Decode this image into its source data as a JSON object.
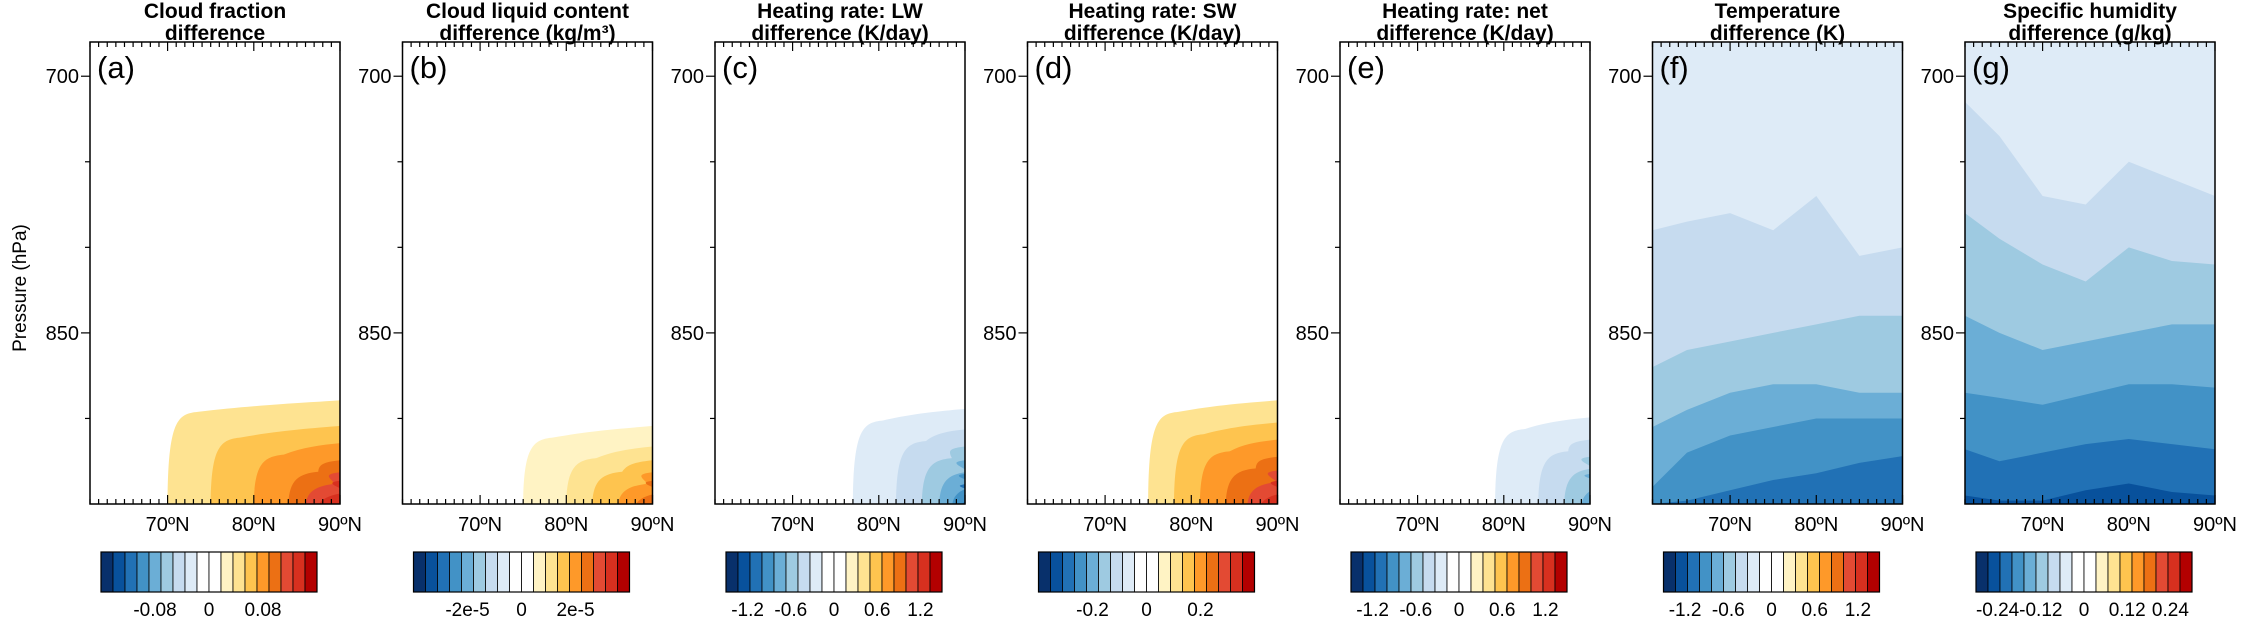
{
  "figure": {
    "ylabel": "Pressure (hPa)",
    "level_scale": [
      "#08306b",
      "#08519c",
      "#2171b5",
      "#4292c6",
      "#6baed6",
      "#9ecae1",
      "#c6dbef",
      "#deebf7",
      "#ffffff",
      "#ffffff",
      "#fff3c4",
      "#fee391",
      "#fec44f",
      "#fe9929",
      "#ec7014",
      "#e34a33",
      "#d7301f",
      "#b30000"
    ]
  },
  "chart_data": [
    {
      "type": "filled-contour",
      "panel": "(a)",
      "title_line1": "Cloud fraction",
      "title_line2": "difference",
      "x_ticks": [
        "70ºN",
        "80ºN",
        "90ºN"
      ],
      "x_range_deg_N": [
        61,
        90
      ],
      "y_ticks": [
        "700",
        "850"
      ],
      "y_range_hPa": [
        680,
        950
      ],
      "colorbar_labels": [
        "-0.08",
        "0",
        "0.08"
      ],
      "colorbar_range": [
        -0.16,
        0.16
      ],
      "shading": "positive anomaly confined below ~890 hPa, strongest near 90ºN surface",
      "anomaly_bands": [
        {
          "level": 11,
          "lat_start": 70,
          "p_top": 895
        },
        {
          "level": 12,
          "lat_start": 75,
          "p_top": 910
        },
        {
          "level": 13,
          "lat_start": 80,
          "p_top": 920
        },
        {
          "level": 14,
          "lat_start": 84,
          "p_top": 930
        },
        {
          "level": 15,
          "lat_start": 86,
          "p_top": 937
        },
        {
          "level": 16,
          "lat_start": 87.5,
          "p_top": 942
        }
      ]
    },
    {
      "type": "filled-contour",
      "panel": "(b)",
      "title_line1": "Cloud liquid content",
      "title_line2": "difference (kg/m³)",
      "x_ticks": [
        "70ºN",
        "80ºN",
        "90ºN"
      ],
      "x_range_deg_N": [
        61,
        90
      ],
      "y_ticks": [
        "700",
        "850"
      ],
      "y_range_hPa": [
        680,
        950
      ],
      "colorbar_labels": [
        "-2e-5",
        "0",
        "2e-5"
      ],
      "colorbar_range": [
        -4e-05,
        4e-05
      ],
      "shading": "weak positive anomaly near surface poleward of 75ºN",
      "anomaly_bands": [
        {
          "level": 10,
          "lat_start": 75,
          "p_top": 910
        },
        {
          "level": 11,
          "lat_start": 80,
          "p_top": 922
        },
        {
          "level": 12,
          "lat_start": 83,
          "p_top": 930
        },
        {
          "level": 13,
          "lat_start": 86,
          "p_top": 937
        },
        {
          "level": 14,
          "lat_start": 88,
          "p_top": 942
        }
      ]
    },
    {
      "type": "filled-contour",
      "panel": "(c)",
      "title_line1": "Heating rate: LW",
      "title_line2": "difference (K/day)",
      "x_ticks": [
        "70ºN",
        "80ºN",
        "90ºN"
      ],
      "x_range_deg_N": [
        61,
        90
      ],
      "y_ticks": [
        "700",
        "850"
      ],
      "y_range_hPa": [
        680,
        950
      ],
      "colorbar_labels": [
        "-1.2",
        "-0.6",
        "0",
        "0.6",
        "1.2"
      ],
      "colorbar_range": [
        -1.5,
        1.5
      ],
      "shading": "negative (cooling) anomaly near surface poleward of 76ºN",
      "anomaly_bands": [
        {
          "level": 7,
          "lat_start": 77,
          "p_top": 900
        },
        {
          "level": 6,
          "lat_start": 82,
          "p_top": 912
        },
        {
          "level": 5,
          "lat_start": 85,
          "p_top": 922
        },
        {
          "level": 4,
          "lat_start": 87,
          "p_top": 930
        },
        {
          "level": 3,
          "lat_start": 88.5,
          "p_top": 938
        },
        {
          "level": 2,
          "lat_start": 89.3,
          "p_top": 944
        }
      ]
    },
    {
      "type": "filled-contour",
      "panel": "(d)",
      "title_line1": "Heating rate: SW",
      "title_line2": "difference (K/day)",
      "x_ticks": [
        "70ºN",
        "80ºN",
        "90ºN"
      ],
      "x_range_deg_N": [
        61,
        90
      ],
      "y_ticks": [
        "700",
        "850"
      ],
      "y_range_hPa": [
        680,
        950
      ],
      "colorbar_labels": [
        "-0.2",
        "0",
        "0.2"
      ],
      "colorbar_range": [
        -0.4,
        0.4
      ],
      "shading": "positive (warming) anomaly near surface poleward of 75ºN",
      "anomaly_bands": [
        {
          "level": 11,
          "lat_start": 75,
          "p_top": 895
        },
        {
          "level": 12,
          "lat_start": 78,
          "p_top": 908
        },
        {
          "level": 13,
          "lat_start": 81,
          "p_top": 918
        },
        {
          "level": 14,
          "lat_start": 84,
          "p_top": 928
        },
        {
          "level": 15,
          "lat_start": 86.5,
          "p_top": 936
        },
        {
          "level": 16,
          "lat_start": 88,
          "p_top": 942
        }
      ]
    },
    {
      "type": "filled-contour",
      "panel": "(e)",
      "title_line1": "Heating rate: net",
      "title_line2": "difference (K/day)",
      "x_ticks": [
        "70ºN",
        "80ºN",
        "90ºN"
      ],
      "x_range_deg_N": [
        61,
        90
      ],
      "y_ticks": [
        "700",
        "850"
      ],
      "y_range_hPa": [
        680,
        950
      ],
      "colorbar_labels": [
        "-1.2",
        "-0.6",
        "0",
        "0.6",
        "1.2"
      ],
      "colorbar_range": [
        -1.5,
        1.5
      ],
      "shading": "negative (cooling) anomaly near surface poleward of 78ºN",
      "anomaly_bands": [
        {
          "level": 7,
          "lat_start": 79,
          "p_top": 905
        },
        {
          "level": 6,
          "lat_start": 84,
          "p_top": 918
        },
        {
          "level": 5,
          "lat_start": 87,
          "p_top": 928
        },
        {
          "level": 4,
          "lat_start": 89,
          "p_top": 938
        }
      ]
    },
    {
      "type": "filled-contour",
      "panel": "(f)",
      "title_line1": "Temperature",
      "title_line2": "difference (K)",
      "x_ticks": [
        "70ºN",
        "80ºN",
        "90ºN"
      ],
      "x_range_deg_N": [
        61,
        90
      ],
      "y_ticks": [
        "700",
        "850"
      ],
      "y_range_hPa": [
        680,
        950
      ],
      "colorbar_labels": [
        "-1.2",
        "-0.6",
        "0",
        "0.6",
        "1.2"
      ],
      "colorbar_range": [
        -1.5,
        1.5
      ],
      "shading": "negative (cooling) anomaly throughout column, strongest near surface at 85-90ºN",
      "layer_boundaries_hPa": {
        "lats": [
          61,
          65,
          70,
          75,
          80,
          85,
          90
        ],
        "layers": [
          {
            "level": 7,
            "p": [
              680,
              680,
              680,
              680,
              680,
              680,
              680
            ]
          },
          {
            "level": 6,
            "p": [
              790,
              785,
              780,
              790,
              770,
              805,
              800
            ]
          },
          {
            "level": 5,
            "p": [
              870,
              860,
              855,
              850,
              845,
              840,
              840
            ]
          },
          {
            "level": 4,
            "p": [
              905,
              895,
              885,
              880,
              880,
              885,
              885
            ]
          },
          {
            "level": 3,
            "p": [
              940,
              920,
              910,
              905,
              900,
              900,
              900
            ]
          },
          {
            "level": 2,
            "p": [
              950,
              948,
              942,
              936,
              932,
              926,
              922
            ]
          }
        ]
      }
    },
    {
      "type": "filled-contour",
      "panel": "(g)",
      "title_line1": "Specific humidity",
      "title_line2": "difference (g/kg)",
      "x_ticks": [
        "70ºN",
        "80ºN",
        "90ºN"
      ],
      "x_range_deg_N": [
        61,
        90
      ],
      "y_ticks": [
        "700",
        "850"
      ],
      "y_range_hPa": [
        680,
        950
      ],
      "colorbar_labels": [
        "-0.24",
        "-0.12",
        "0",
        "0.12",
        "0.24"
      ],
      "colorbar_range": [
        -0.3,
        0.3
      ],
      "shading": "negative (drying) anomaly throughout column, strongest below 890 hPa",
      "layer_boundaries_hPa": {
        "lats": [
          61,
          65,
          70,
          75,
          80,
          85,
          90
        ],
        "layers": [
          {
            "level": 7,
            "p": [
              680,
              680,
              680,
              680,
              680,
              680,
              680
            ]
          },
          {
            "level": 6,
            "p": [
              715,
              735,
              770,
              775,
              750,
              760,
              770
            ]
          },
          {
            "level": 5,
            "p": [
              780,
              795,
              810,
              820,
              800,
              808,
              810
            ]
          },
          {
            "level": 4,
            "p": [
              840,
              850,
              860,
              855,
              850,
              845,
              845
            ]
          },
          {
            "level": 3,
            "p": [
              885,
              888,
              892,
              886,
              880,
              880,
              882
            ]
          },
          {
            "level": 2,
            "p": [
              918,
              925,
              920,
              915,
              912,
              915,
              918
            ]
          },
          {
            "level": 1,
            "p": [
              945,
              948,
              948,
              942,
              938,
              943,
              945
            ]
          }
        ]
      }
    }
  ]
}
